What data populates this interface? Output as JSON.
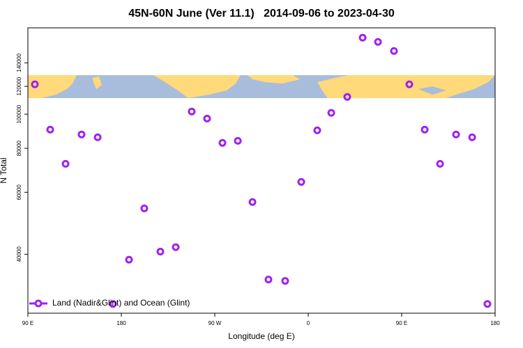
{
  "chart_data": {
    "type": "scatter",
    "title": "45N-60N June (Ver 11.1)   2014-09-06 to 2023-04-30",
    "xlabel": "Longitude (deg E)",
    "ylabel": "N Total",
    "series": [
      {
        "name": "Land (Nadir&Glint) and Ocean (Glint)",
        "color": "#a020f0",
        "x": [
          96.7,
          111.5,
          126.3,
          141.7,
          157.2,
          171.9,
          187.4,
          202.1,
          217.6,
          232.4,
          247.8,
          262.6,
          277.4,
          292.2,
          306.3,
          321.7,
          337.8,
          353.3,
          368.7,
          382.2,
          397.6,
          412.4,
          427.2,
          442.6,
          457.4,
          472.2,
          487,
          502.4,
          517.9,
          532.6
        ],
        "values": [
          121600,
          90400,
          72300,
          87600,
          86000,
          28900,
          38600,
          54000,
          40700,
          41900,
          101800,
          97200,
          82900,
          84000,
          56300,
          33900,
          33600,
          64200,
          90000,
          100900,
          112000,
          165000,
          160500,
          151300,
          121600,
          90400,
          72300,
          87600,
          86000,
          28900
        ]
      }
    ],
    "xlim": [
      90,
      540
    ],
    "xticks": [
      {
        "value": 90,
        "label": "90 E"
      },
      180,
      {
        "value": 270,
        "label": "90 W"
      },
      {
        "value": 360,
        "label": "0"
      },
      {
        "value": 450,
        "label": "90 E"
      },
      {
        "value": 540,
        "label": "180"
      }
    ],
    "ylim": [
      27200,
      176000
    ],
    "yticks": [
      40000,
      60000,
      80000,
      100000,
      120000,
      140000
    ],
    "log_y": true,
    "legend": "lower left"
  }
}
